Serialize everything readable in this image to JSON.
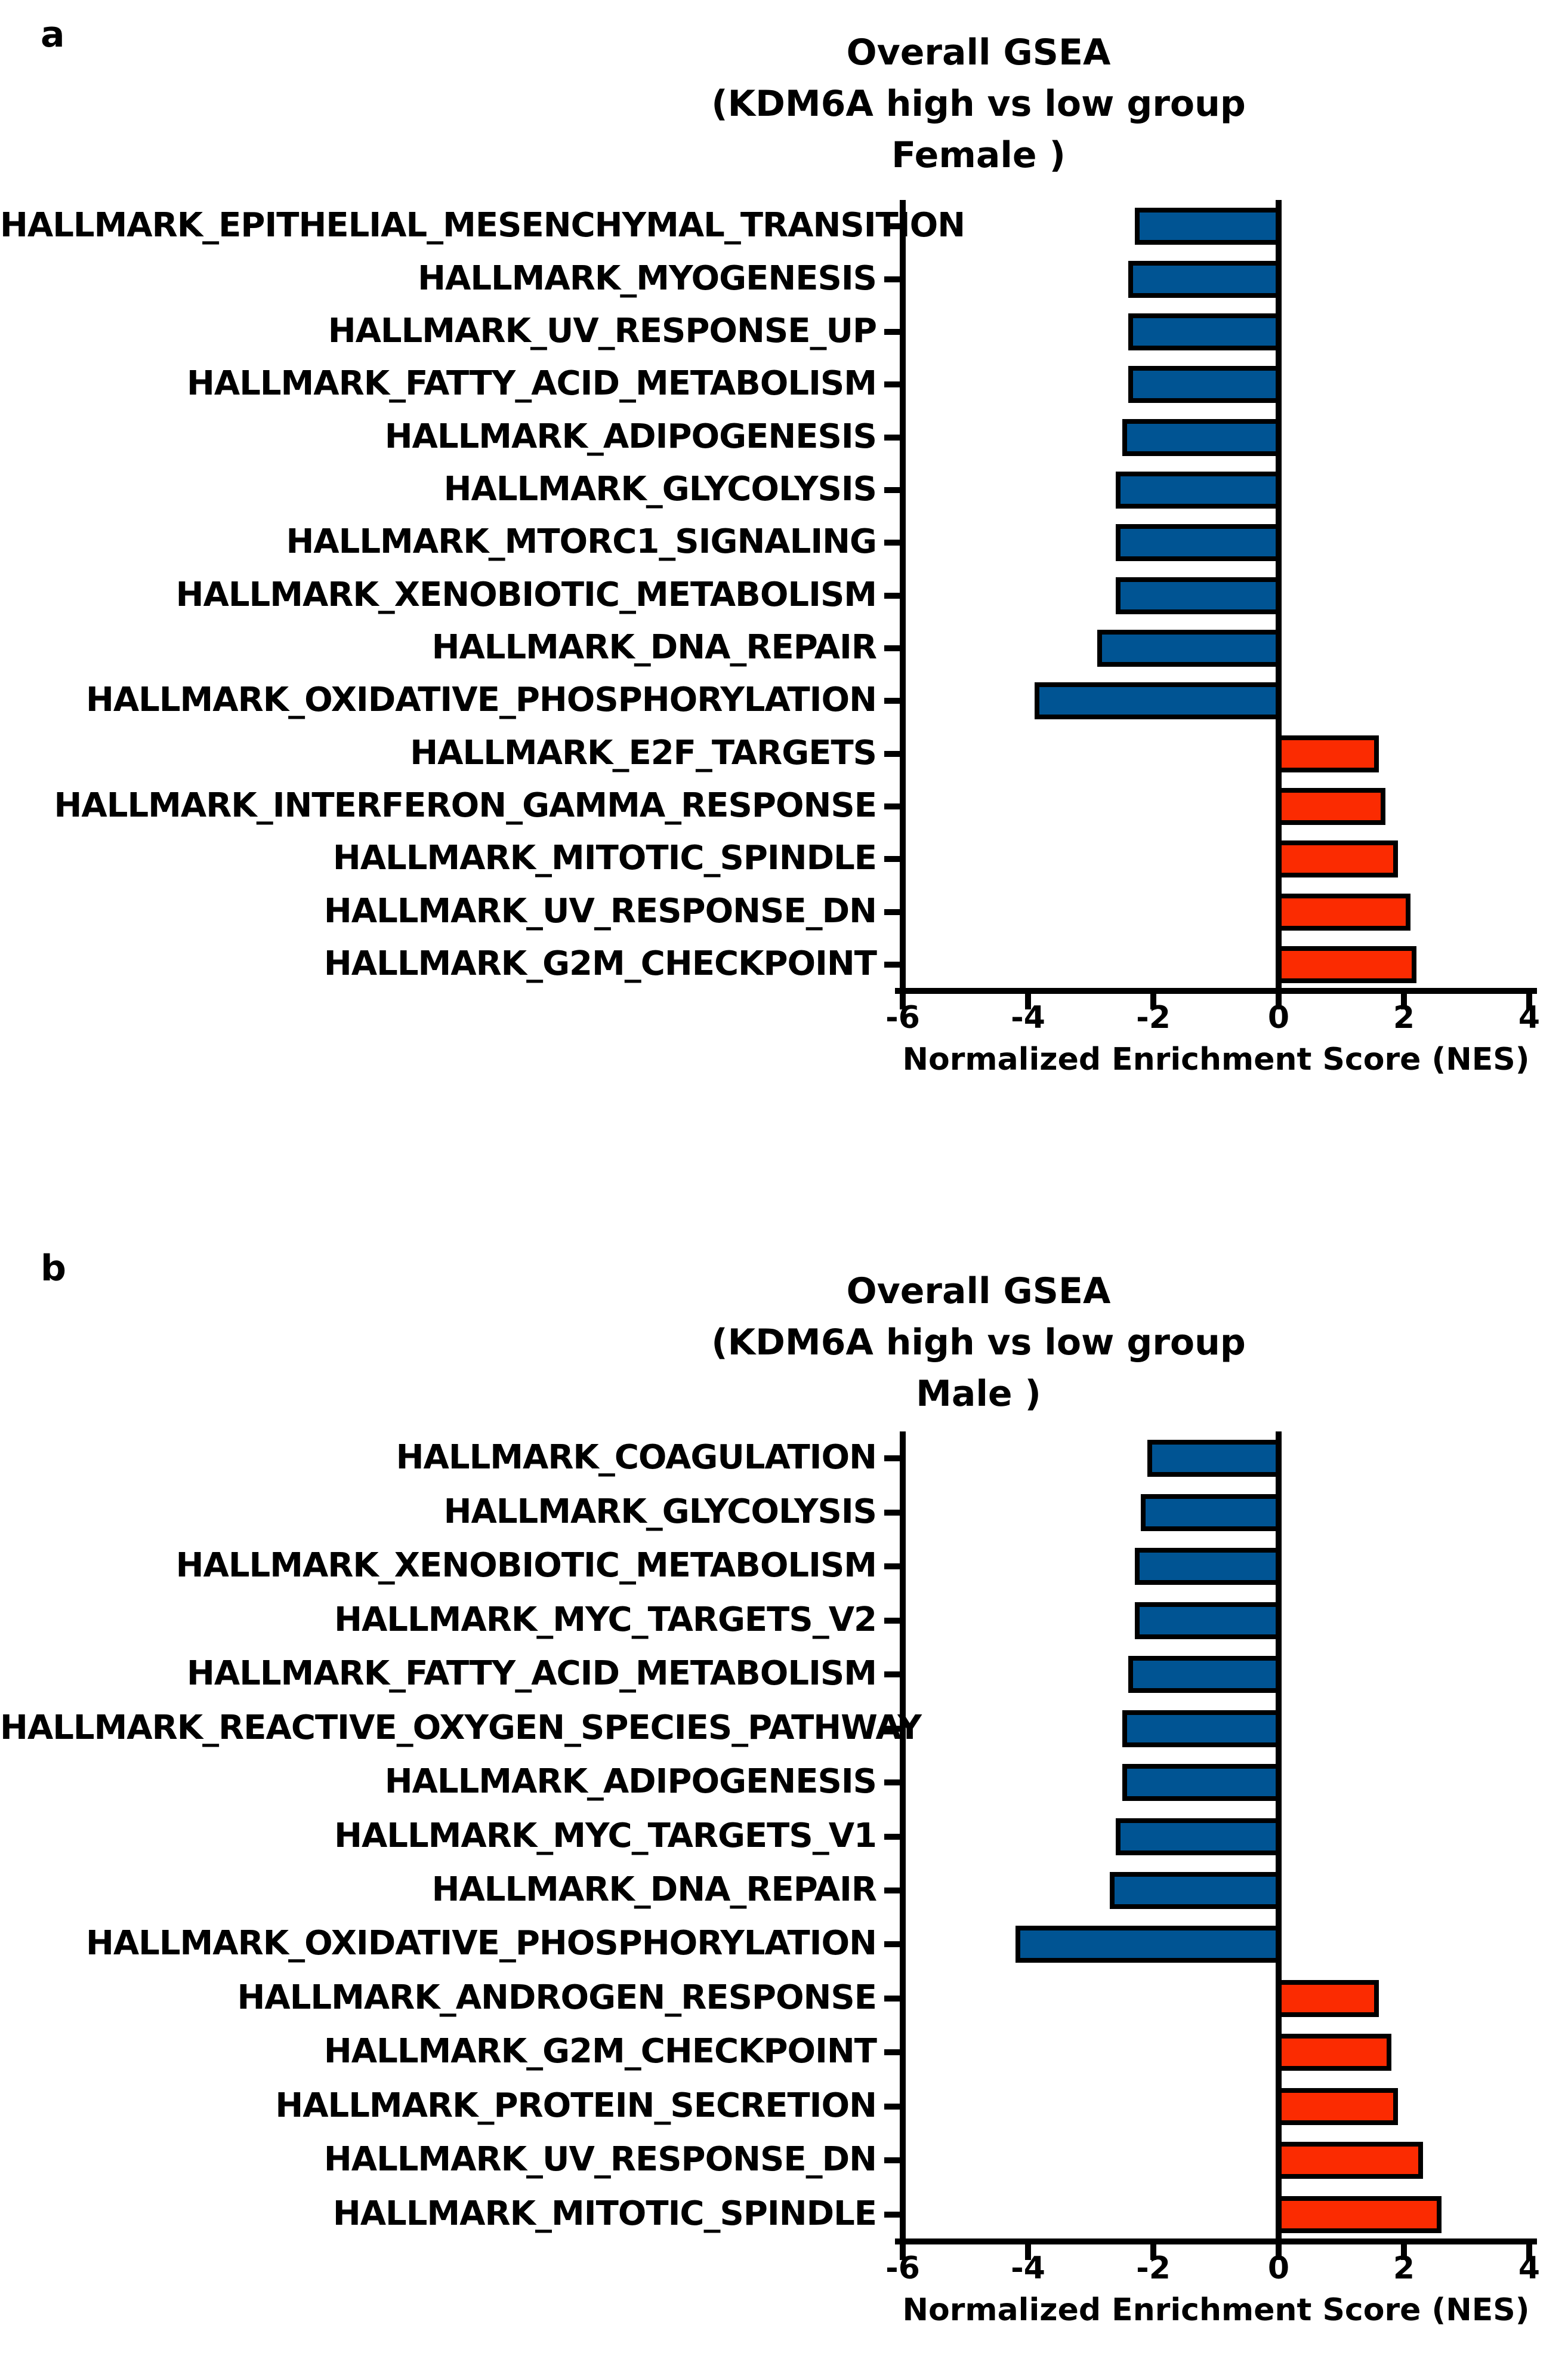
{
  "figure": {
    "description": "Overall GSEA normalized enrichment score bar charts for KDM6A high vs low groups, split by sex",
    "background_color": "#ffffff",
    "axis_color": "#000000"
  },
  "chart_data": [
    {
      "panel_letter": "a",
      "type": "bar",
      "orientation": "horizontal",
      "title_lines": [
        "Overall GSEA",
        "(KDM6A high vs low group",
        "Female )"
      ],
      "xlabel": "Normalized Enrichment Score (NES)",
      "xlim": [
        -6,
        4
      ],
      "xticks": [
        -6,
        -4,
        -2,
        0,
        2,
        4
      ],
      "grid": false,
      "legend": "none",
      "bar_color_negative": "#005493",
      "bar_color_positive": "#fb2b01",
      "bar_outline_color": "#000000",
      "categories": [
        "HALLMARK_EPITHELIAL_MESENCHYMAL_TRANSITION",
        "HALLMARK_MYOGENESIS",
        "HALLMARK_UV_RESPONSE_UP",
        "HALLMARK_FATTY_ACID_METABOLISM",
        "HALLMARK_ADIPOGENESIS",
        "HALLMARK_GLYCOLYSIS",
        "HALLMARK_MTORC1_SIGNALING",
        "HALLMARK_XENOBIOTIC_METABOLISM",
        "HALLMARK_DNA_REPAIR",
        "HALLMARK_OXIDATIVE_PHOSPHORYLATION",
        "HALLMARK_E2F_TARGETS",
        "HALLMARK_INTERFERON_GAMMA_RESPONSE",
        "HALLMARK_MITOTIC_SPINDLE",
        "HALLMARK_UV_RESPONSE_DN",
        "HALLMARK_G2M_CHECKPOINT"
      ],
      "values": [
        -2.3,
        -2.4,
        -2.4,
        -2.4,
        -2.5,
        -2.6,
        -2.6,
        -2.6,
        -2.9,
        -3.9,
        1.6,
        1.7,
        1.9,
        2.1,
        2.2
      ]
    },
    {
      "panel_letter": "b",
      "type": "bar",
      "orientation": "horizontal",
      "title_lines": [
        "Overall GSEA",
        "(KDM6A high vs low group",
        "Male )"
      ],
      "xlabel": "Normalized Enrichment Score (NES)",
      "xlim": [
        -6,
        4
      ],
      "xticks": [
        -6,
        -4,
        -2,
        0,
        2,
        4
      ],
      "grid": false,
      "legend": "none",
      "bar_color_negative": "#005493",
      "bar_color_positive": "#fb2b01",
      "bar_outline_color": "#000000",
      "categories": [
        "HALLMARK_COAGULATION",
        "HALLMARK_GLYCOLYSIS",
        "HALLMARK_XENOBIOTIC_METABOLISM",
        "HALLMARK_MYC_TARGETS_V2",
        "HALLMARK_FATTY_ACID_METABOLISM",
        "HALLMARK_REACTIVE_OXYGEN_SPECIES_PATHWAY",
        "HALLMARK_ADIPOGENESIS",
        "HALLMARK_MYC_TARGETS_V1",
        "HALLMARK_DNA_REPAIR",
        "HALLMARK_OXIDATIVE_PHOSPHORYLATION",
        "HALLMARK_ANDROGEN_RESPONSE",
        "HALLMARK_G2M_CHECKPOINT",
        "HALLMARK_PROTEIN_SECRETION",
        "HALLMARK_UV_RESPONSE_DN",
        "HALLMARK_MITOTIC_SPINDLE"
      ],
      "values": [
        -2.1,
        -2.2,
        -2.3,
        -2.3,
        -2.4,
        -2.5,
        -2.5,
        -2.6,
        -2.7,
        -4.2,
        1.6,
        1.8,
        1.9,
        2.3,
        2.6
      ]
    }
  ]
}
